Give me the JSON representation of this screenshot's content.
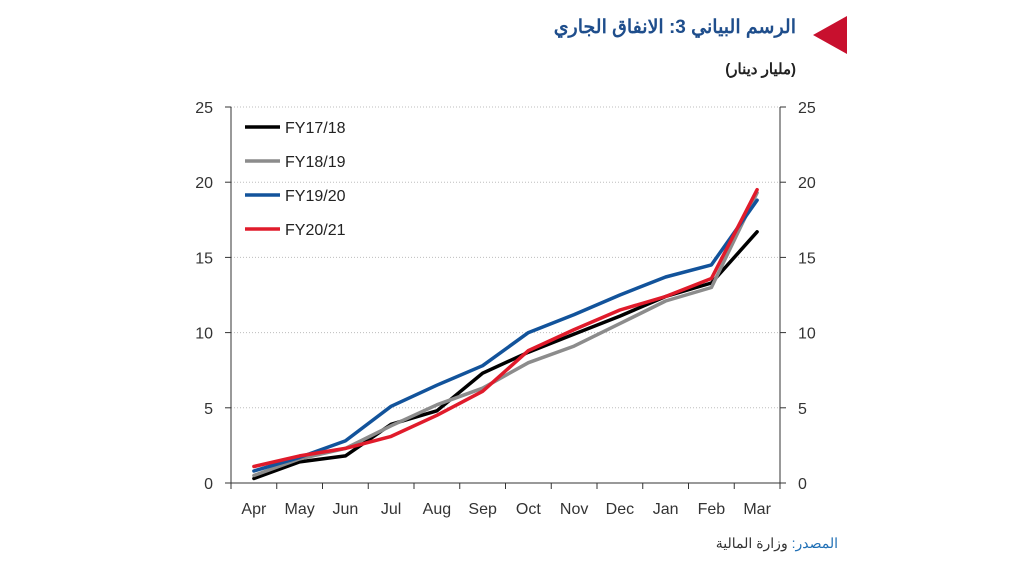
{
  "header": {
    "title": "الرسم البياني 3: الانفاق الجاري",
    "unit": "(مليار دينار)",
    "accent_color": "#c8102e",
    "title_color": "#1f4e8c"
  },
  "footer": {
    "source_label": "المصدر:",
    "source_value": "وزارة المالية"
  },
  "chart_data": {
    "type": "line",
    "title": "الرسم البياني 3: الانفاق الجاري",
    "ylabel": "(مليار دينار)",
    "xlabel": "",
    "categories": [
      "Apr",
      "May",
      "Jun",
      "Jul",
      "Aug",
      "Sep",
      "Oct",
      "Nov",
      "Dec",
      "Jan",
      "Feb",
      "Mar"
    ],
    "ylim": [
      0,
      25
    ],
    "yticks": [
      0,
      5,
      10,
      15,
      20,
      25
    ],
    "dual_y_axis": true,
    "grid": "horizontal-dotted",
    "legend_position": "top-left",
    "series": [
      {
        "name": "FY17/18",
        "color": "#000000",
        "values": [
          0.3,
          1.4,
          1.8,
          3.9,
          4.8,
          7.3,
          8.7,
          9.9,
          11.1,
          12.4,
          13.3,
          16.7
        ]
      },
      {
        "name": "FY18/19",
        "color": "#8c8c8c",
        "values": [
          0.5,
          1.6,
          2.3,
          3.8,
          5.2,
          6.3,
          8.0,
          9.1,
          10.6,
          12.1,
          13.0,
          19.3
        ]
      },
      {
        "name": "FY19/20",
        "color": "#12539b",
        "values": [
          0.8,
          1.7,
          2.8,
          5.1,
          6.5,
          7.8,
          10.0,
          11.2,
          12.5,
          13.7,
          14.5,
          18.8
        ]
      },
      {
        "name": "FY20/21",
        "color": "#e01b2b",
        "values": [
          1.1,
          1.8,
          2.3,
          3.1,
          4.5,
          6.1,
          8.8,
          10.2,
          11.5,
          12.4,
          13.6,
          19.5
        ]
      }
    ]
  }
}
